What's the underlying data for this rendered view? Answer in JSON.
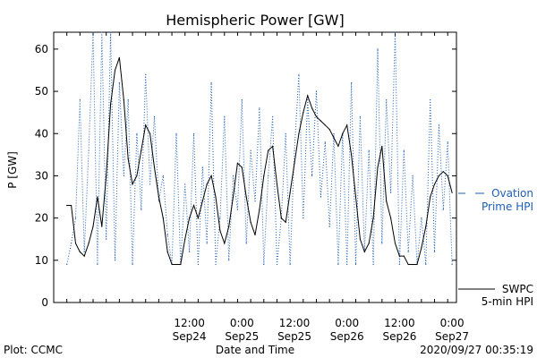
{
  "page": {
    "footer_left": "Plot: CCMC",
    "footer_right": "2020/09/27 00:35:19"
  },
  "chart_data": {
    "type": "line",
    "title": "Hemispheric Power [GW]",
    "xlabel": "Date and Time",
    "ylabel": "P [GW]",
    "ylim": [
      0,
      64
    ],
    "yticks": [
      0,
      10,
      20,
      30,
      40,
      50,
      60
    ],
    "xlim_hours_display": [
      0,
      89
    ],
    "xticks": [
      {
        "time": "12:00",
        "date": "Sep24"
      },
      {
        "time": "0:00",
        "date": "Sep25"
      },
      {
        "time": "12:00",
        "date": "Sep25"
      },
      {
        "time": "0:00",
        "date": "Sep26"
      },
      {
        "time": "12:00",
        "date": "Sep26"
      },
      {
        "time": "0:00",
        "date": "Sep27"
      }
    ],
    "legend": {
      "ovation_label_1": "Ovation",
      "ovation_label_2": "Prime HPI",
      "swpc_label_1": "SWPC",
      "swpc_label_2": "5-min HPI"
    },
    "colors": {
      "swpc": "#000000",
      "ovation": "#1f5fb3"
    },
    "series": [
      {
        "name": "SWPC 5-min HPI",
        "style": "solid",
        "x": [
          "2020-09-23 08:00",
          "2020-09-23 09:00",
          "2020-09-23 10:00",
          "2020-09-23 11:00",
          "2020-09-23 12:00",
          "2020-09-23 13:00",
          "2020-09-23 14:00",
          "2020-09-23 15:00",
          "2020-09-23 16:00",
          "2020-09-23 17:00",
          "2020-09-23 18:00",
          "2020-09-23 19:00",
          "2020-09-23 20:00",
          "2020-09-23 21:00",
          "2020-09-23 22:00",
          "2020-09-23 23:00",
          "2020-09-24 00:00",
          "2020-09-24 01:00",
          "2020-09-24 02:00",
          "2020-09-24 03:00",
          "2020-09-24 04:00",
          "2020-09-24 05:00",
          "2020-09-24 06:00",
          "2020-09-24 07:00",
          "2020-09-24 08:00",
          "2020-09-24 09:00",
          "2020-09-24 10:00",
          "2020-09-24 11:00",
          "2020-09-24 12:00",
          "2020-09-24 13:00",
          "2020-09-24 14:00",
          "2020-09-24 15:00",
          "2020-09-24 16:00",
          "2020-09-24 17:00",
          "2020-09-24 18:00",
          "2020-09-24 19:00",
          "2020-09-24 20:00",
          "2020-09-24 21:00",
          "2020-09-24 22:00",
          "2020-09-24 23:00",
          "2020-09-25 00:00",
          "2020-09-25 01:00",
          "2020-09-25 02:00",
          "2020-09-25 03:00",
          "2020-09-25 04:00",
          "2020-09-25 05:00",
          "2020-09-25 06:00",
          "2020-09-25 07:00",
          "2020-09-25 08:00",
          "2020-09-25 09:00",
          "2020-09-25 10:00",
          "2020-09-25 11:00",
          "2020-09-25 12:00",
          "2020-09-25 13:00",
          "2020-09-25 14:00",
          "2020-09-25 15:00",
          "2020-09-25 16:00",
          "2020-09-25 17:00",
          "2020-09-25 18:00",
          "2020-09-25 19:00",
          "2020-09-25 20:00",
          "2020-09-25 21:00",
          "2020-09-25 22:00",
          "2020-09-25 23:00",
          "2020-09-26 00:00",
          "2020-09-26 01:00",
          "2020-09-26 02:00",
          "2020-09-26 03:00",
          "2020-09-26 04:00",
          "2020-09-26 05:00",
          "2020-09-26 06:00",
          "2020-09-26 07:00",
          "2020-09-26 08:00",
          "2020-09-26 09:00",
          "2020-09-26 10:00",
          "2020-09-26 11:00",
          "2020-09-26 12:00",
          "2020-09-26 13:00",
          "2020-09-26 14:00",
          "2020-09-26 15:00",
          "2020-09-26 16:00",
          "2020-09-26 17:00",
          "2020-09-26 18:00",
          "2020-09-26 19:00",
          "2020-09-26 20:00",
          "2020-09-26 21:00",
          "2020-09-26 22:00",
          "2020-09-26 23:00",
          "2020-09-27 00:00"
        ],
        "values": [
          23,
          23,
          14,
          12,
          11,
          14,
          18,
          25,
          18,
          30,
          47,
          55,
          58,
          48,
          34,
          28,
          30,
          36,
          42,
          40,
          32,
          25,
          20,
          12,
          9,
          9,
          9,
          15,
          20,
          23,
          20,
          24,
          28,
          30,
          25,
          17,
          14,
          18,
          25,
          33,
          32,
          25,
          19,
          16,
          22,
          30,
          36,
          37,
          28,
          20,
          19,
          26,
          33,
          40,
          45,
          49,
          46,
          44,
          43,
          42,
          41,
          39,
          37,
          40,
          42,
          35,
          25,
          15,
          12,
          14,
          20,
          32,
          37,
          24,
          20,
          14,
          11,
          11,
          9,
          9,
          9,
          13,
          18,
          25,
          28,
          30,
          31,
          30,
          26
        ]
      },
      {
        "name": "Ovation Prime HPI",
        "style": "dotted",
        "x": [
          "2020-09-23 08:00",
          "2020-09-23 09:00",
          "2020-09-23 10:00",
          "2020-09-23 11:00",
          "2020-09-23 12:00",
          "2020-09-23 13:00",
          "2020-09-23 14:00",
          "2020-09-23 15:00",
          "2020-09-23 16:00",
          "2020-09-23 17:00",
          "2020-09-23 18:00",
          "2020-09-23 19:00",
          "2020-09-23 20:00",
          "2020-09-23 21:00",
          "2020-09-23 22:00",
          "2020-09-23 23:00",
          "2020-09-24 00:00",
          "2020-09-24 01:00",
          "2020-09-24 02:00",
          "2020-09-24 03:00",
          "2020-09-24 04:00",
          "2020-09-24 05:00",
          "2020-09-24 06:00",
          "2020-09-24 07:00",
          "2020-09-24 08:00",
          "2020-09-24 09:00",
          "2020-09-24 10:00",
          "2020-09-24 11:00",
          "2020-09-24 12:00",
          "2020-09-24 13:00",
          "2020-09-24 14:00",
          "2020-09-24 15:00",
          "2020-09-24 16:00",
          "2020-09-24 17:00",
          "2020-09-24 18:00",
          "2020-09-24 19:00",
          "2020-09-24 20:00",
          "2020-09-24 21:00",
          "2020-09-24 22:00",
          "2020-09-24 23:00",
          "2020-09-25 00:00",
          "2020-09-25 01:00",
          "2020-09-25 02:00",
          "2020-09-25 03:00",
          "2020-09-25 04:00",
          "2020-09-25 05:00",
          "2020-09-25 06:00",
          "2020-09-25 07:00",
          "2020-09-25 08:00",
          "2020-09-25 09:00",
          "2020-09-25 10:00",
          "2020-09-25 11:00",
          "2020-09-25 12:00",
          "2020-09-25 13:00",
          "2020-09-25 14:00",
          "2020-09-25 15:00",
          "2020-09-25 16:00",
          "2020-09-25 17:00",
          "2020-09-25 18:00",
          "2020-09-25 19:00",
          "2020-09-25 20:00",
          "2020-09-25 21:00",
          "2020-09-25 22:00",
          "2020-09-25 23:00",
          "2020-09-26 00:00",
          "2020-09-26 01:00",
          "2020-09-26 02:00",
          "2020-09-26 03:00",
          "2020-09-26 04:00",
          "2020-09-26 05:00",
          "2020-09-26 06:00",
          "2020-09-26 07:00",
          "2020-09-26 08:00",
          "2020-09-26 09:00",
          "2020-09-26 10:00",
          "2020-09-26 11:00",
          "2020-09-26 12:00",
          "2020-09-26 13:00",
          "2020-09-26 14:00",
          "2020-09-26 15:00",
          "2020-09-26 16:00",
          "2020-09-26 17:00",
          "2020-09-26 18:00",
          "2020-09-26 19:00",
          "2020-09-26 20:00",
          "2020-09-26 21:00",
          "2020-09-26 22:00",
          "2020-09-26 23:00",
          "2020-09-27 00:00"
        ],
        "values": [
          9,
          14,
          20,
          48,
          12,
          36,
          64,
          9,
          64,
          15,
          64,
          10,
          52,
          30,
          48,
          9,
          40,
          22,
          54,
          28,
          44,
          24,
          30,
          16,
          9,
          40,
          9,
          28,
          12,
          40,
          9,
          32,
          14,
          52,
          9,
          20,
          44,
          10,
          30,
          22,
          48,
          14,
          36,
          24,
          46,
          9,
          30,
          44,
          9,
          20,
          40,
          9,
          36,
          54,
          20,
          48,
          30,
          50,
          25,
          38,
          18,
          40,
          9,
          40,
          9,
          52,
          9,
          44,
          12,
          36,
          9,
          60,
          14,
          48,
          26,
          64,
          9,
          36,
          12,
          30,
          9,
          20,
          9,
          48,
          12,
          42,
          22,
          38,
          9
        ]
      }
    ]
  }
}
